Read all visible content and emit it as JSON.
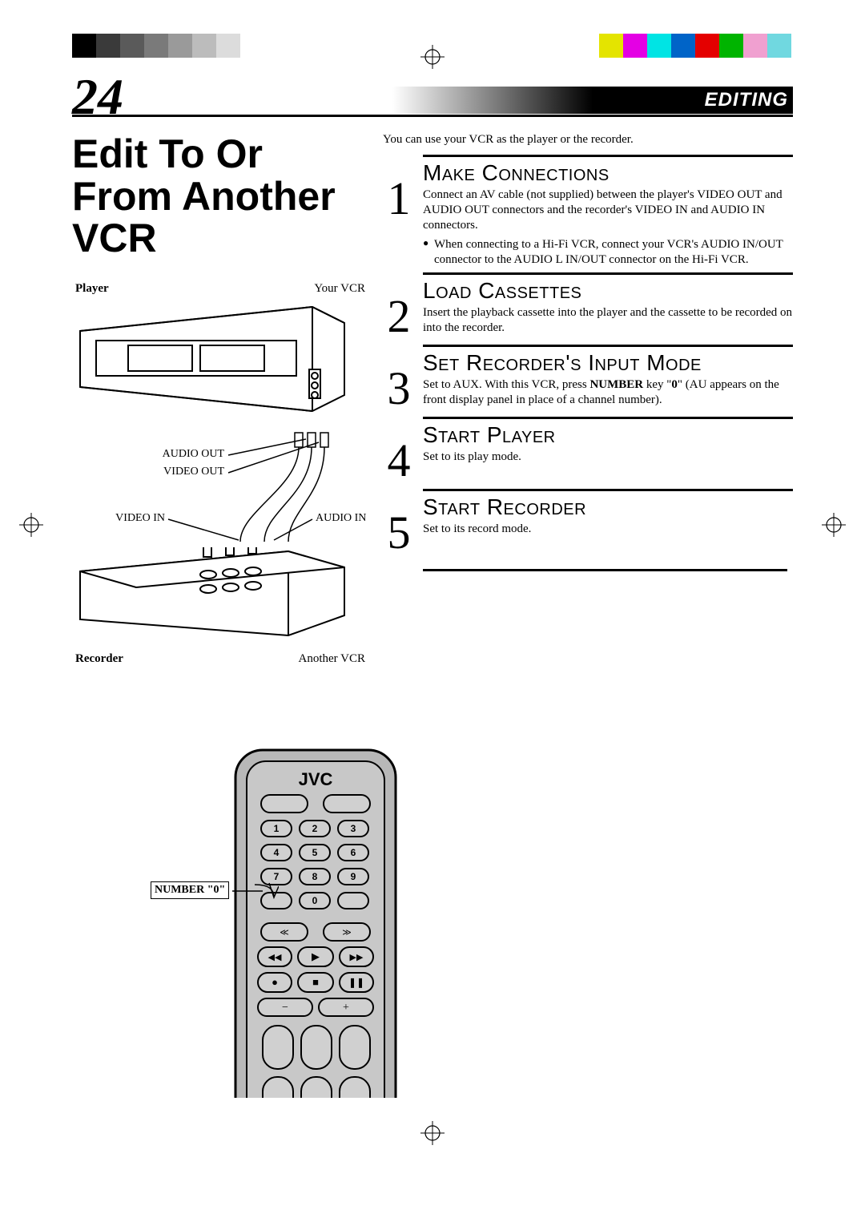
{
  "page_number": "24",
  "section_label": "EDITING",
  "title": "Edit To Or From Another VCR",
  "colorbars": {
    "left": [
      "#000000",
      "#3a3a3a",
      "#5a5a5a",
      "#7a7a7a",
      "#9a9a9a",
      "#bcbcbc",
      "#dcdcdc",
      "#ffffff"
    ],
    "right": [
      "#e4e400",
      "#e400e4",
      "#00e4e4",
      "#0064c8",
      "#e40000",
      "#00b400",
      "#f0a0d0",
      "#70d8e0"
    ]
  },
  "diagram": {
    "top_left": "Player",
    "top_right": "Your VCR",
    "audio_out": "AUDIO OUT",
    "video_out": "VIDEO OUT",
    "video_in": "VIDEO IN",
    "audio_in": "AUDIO IN",
    "bottom_left": "Recorder",
    "bottom_right": "Another VCR"
  },
  "intro": "You can use your VCR as the player or the recorder.",
  "steps": [
    {
      "num": "1",
      "heading": "Make Connections",
      "text": "Connect an AV cable (not supplied) between the player's VIDEO OUT and AUDIO OUT connectors and the recorder's VIDEO IN and AUDIO IN connectors.",
      "bullet": "When connecting to a Hi-Fi VCR, connect your VCR's AUDIO IN/OUT connector to the AUDIO L IN/OUT connector on the Hi-Fi VCR."
    },
    {
      "num": "2",
      "heading": "Load Cassettes",
      "text": "Insert the playback cassette into the player and the cassette to be recorded on into the recorder."
    },
    {
      "num": "3",
      "heading": "Set Recorder's Input Mode",
      "text_pre": "Set to AUX. With this VCR, press ",
      "text_bold": "NUMBER",
      "text_mid": " key \"",
      "text_bold2": "0",
      "text_post": "\" (AU appears on the front display panel in place of a channel number)."
    },
    {
      "num": "4",
      "heading": "Start Player",
      "text": "Set to its play mode."
    },
    {
      "num": "5",
      "heading": "Start Recorder",
      "text": "Set to its record mode."
    }
  ],
  "remote": {
    "brand": "JVC",
    "callout": "NUMBER \"0\"",
    "keys": [
      "1",
      "2",
      "3",
      "4",
      "5",
      "6",
      "7",
      "8",
      "9",
      "0"
    ]
  },
  "colors": {
    "black": "#000000",
    "white": "#ffffff",
    "remote_body": "#b8b8b8",
    "remote_shadow": "#8a8a8a",
    "button_face": "#d0d0d0"
  }
}
